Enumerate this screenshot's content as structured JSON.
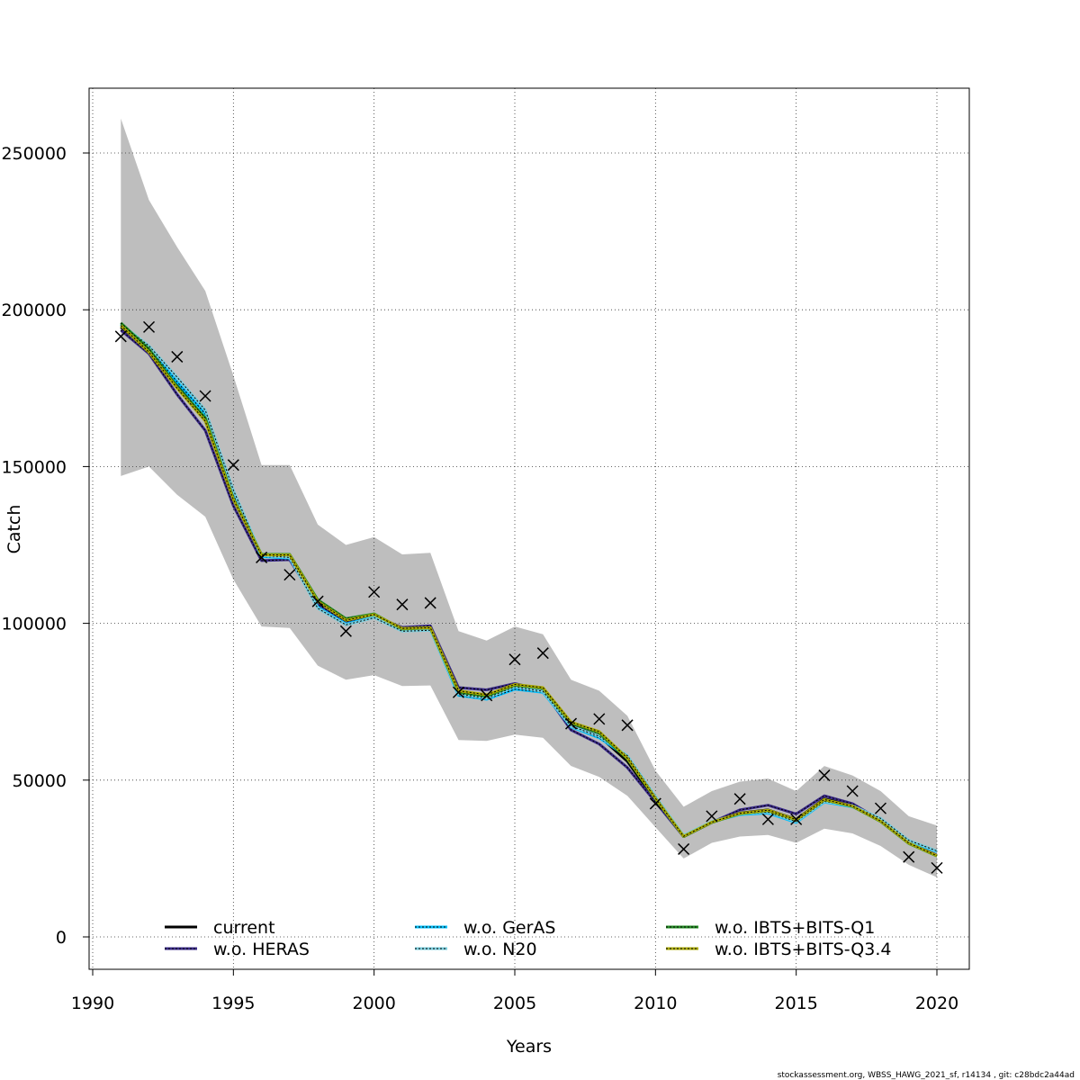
{
  "chart_data": {
    "type": "line",
    "title": "",
    "xlabel": "Years",
    "ylabel": "Catch",
    "xlim": [
      1990,
      2021
    ],
    "ylim": [
      -10000,
      270000
    ],
    "x_ticks": [
      1990,
      1995,
      2000,
      2005,
      2010,
      2015,
      2020
    ],
    "y_ticks": [
      0,
      50000,
      100000,
      150000,
      200000,
      250000
    ],
    "x_tick_labels": [
      "1990",
      "1995",
      "2000",
      "2005",
      "2010",
      "2015",
      "2020"
    ],
    "y_tick_labels": [
      "0",
      "50000",
      "100000",
      "150000",
      "200000",
      "250000"
    ],
    "grid": true,
    "legend_position": "bottom",
    "x": [
      1991,
      1992,
      1993,
      1994,
      1995,
      1996,
      1997,
      1998,
      1999,
      2000,
      2001,
      2002,
      2003,
      2004,
      2005,
      2006,
      2007,
      2008,
      2009,
      2010,
      2011,
      2012,
      2013,
      2014,
      2015,
      2016,
      2017,
      2018,
      2019,
      2020
    ],
    "confidence_band": {
      "lower": [
        147000,
        150000,
        141000,
        134000,
        114000,
        99000,
        98500,
        86500,
        82000,
        83500,
        80000,
        80200,
        62800,
        62500,
        64500,
        63500,
        54500,
        51000,
        45000,
        35000,
        25000,
        30000,
        32000,
        32500,
        30000,
        34500,
        33000,
        29000,
        23000,
        19000
      ],
      "upper": [
        261000,
        235000,
        220000,
        206000,
        179000,
        150500,
        150500,
        131500,
        125000,
        127500,
        122000,
        122500,
        97500,
        94500,
        99000,
        96500,
        82000,
        78500,
        70500,
        53000,
        41500,
        46500,
        49500,
        50500,
        46500,
        54500,
        51500,
        46500,
        38500,
        35500
      ],
      "color": "#bebebe"
    },
    "series": [
      {
        "name": "current",
        "color": "#000000",
        "line": "solid",
        "values": [
          194500,
          187000,
          176000,
          165000,
          140000,
          121500,
          121000,
          106500,
          100500,
          102500,
          98500,
          98700,
          78500,
          77000,
          80500,
          79000,
          67500,
          64000,
          56000,
          43500,
          32000,
          36500,
          39500,
          40500,
          37500,
          44000,
          42000,
          37000,
          30000,
          26000
        ]
      },
      {
        "name": "w.o. HERAS",
        "color": "#3b2b8a",
        "line": "solid",
        "dash_color": "#000000",
        "values": [
          193500,
          186000,
          173000,
          161500,
          137500,
          120000,
          120300,
          106000,
          100500,
          102300,
          98700,
          99200,
          79500,
          78800,
          80800,
          78700,
          66000,
          61500,
          54000,
          43000,
          32000,
          36500,
          40500,
          42000,
          39200,
          45000,
          42500,
          37200,
          30000,
          26000
        ]
      },
      {
        "name": "w.o. GerAS",
        "color": "#00bfff",
        "line": "dotted",
        "values": [
          195300,
          187800,
          177000,
          166800,
          141000,
          121300,
          120800,
          105200,
          99800,
          102000,
          97700,
          98000,
          77000,
          75800,
          79000,
          78000,
          67000,
          63500,
          57500,
          44500,
          32200,
          36700,
          39000,
          39500,
          36500,
          43000,
          41500,
          37500,
          30500,
          27200
        ]
      },
      {
        "name": "w.o. N20",
        "color": "#79cddc",
        "line": "solid",
        "dash_color": "#000000",
        "values": [
          195500,
          188500,
          178500,
          168000,
          142500,
          121700,
          121000,
          104800,
          99500,
          101800,
          97500,
          97800,
          77500,
          76200,
          79800,
          78300,
          67200,
          64000,
          57800,
          44800,
          32400,
          36800,
          39200,
          39800,
          36800,
          43200,
          41800,
          37800,
          30800,
          27400
        ]
      },
      {
        "name": "w.o. IBTS+BITS-Q1",
        "color": "#228b22",
        "line": "solid",
        "dash_color": "#000000",
        "values": [
          195800,
          187500,
          175500,
          165500,
          139800,
          122000,
          122000,
          107500,
          101500,
          103000,
          98200,
          98500,
          78000,
          76800,
          80300,
          79300,
          68200,
          65000,
          56800,
          44000,
          32000,
          36500,
          39300,
          40300,
          37300,
          43700,
          41600,
          36800,
          29800,
          25800
        ]
      },
      {
        "name": "w.o. IBTS+BITS-Q3.4",
        "color": "#aaaa00",
        "line": "solid",
        "dash_color": "#000000",
        "values": [
          195000,
          186500,
          175000,
          164500,
          139500,
          121800,
          121800,
          107000,
          101000,
          102800,
          98400,
          98600,
          78500,
          77200,
          80500,
          79500,
          68500,
          65500,
          57000,
          44200,
          32100,
          36600,
          39400,
          40400,
          37400,
          43800,
          41700,
          36900,
          29900,
          25900
        ]
      }
    ],
    "observations": {
      "marker": "x",
      "x": [
        1991,
        1992,
        1993,
        1994,
        1995,
        1996,
        1997,
        1998,
        1999,
        2000,
        2001,
        2002,
        2003,
        2004,
        2005,
        2006,
        2007,
        2008,
        2009,
        2010,
        2011,
        2012,
        2013,
        2014,
        2015,
        2016,
        2017,
        2018,
        2019,
        2020
      ],
      "values": [
        191500,
        194500,
        185000,
        172500,
        150500,
        121000,
        115500,
        107000,
        97500,
        110000,
        106000,
        106500,
        78000,
        77000,
        88500,
        90500,
        68000,
        69500,
        67500,
        42500,
        28000,
        38500,
        44000,
        37500,
        37500,
        51500,
        46500,
        41000,
        25500,
        22000
      ]
    }
  },
  "footer": {
    "text": "stockassessment.org, WBSS_HAWG_2021_sf, r14134 , git: c28bdc2a44ad"
  }
}
